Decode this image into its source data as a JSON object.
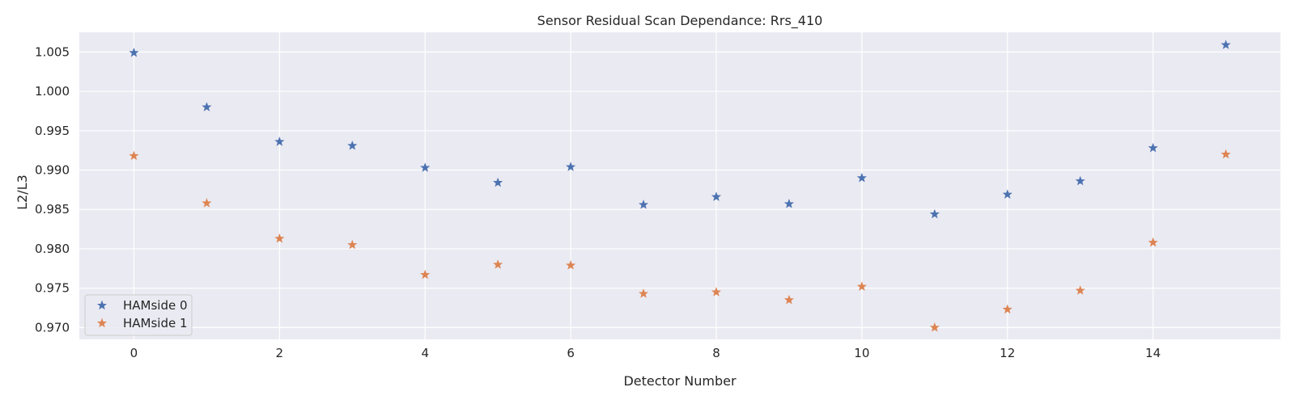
{
  "chart_data": {
    "type": "scatter",
    "title": "Sensor Residual Scan Dependance: Rrs_410",
    "xlabel": "Detector Number",
    "ylabel": "L2/L3",
    "xlim": [
      -0.75,
      15.75
    ],
    "ylim": [
      0.9685,
      1.0075
    ],
    "xticks": [
      0,
      2,
      4,
      6,
      8,
      10,
      12,
      14
    ],
    "yticks": [
      0.97,
      0.975,
      0.98,
      0.985,
      0.99,
      0.995,
      1.0,
      1.005
    ],
    "ytick_labels": [
      "0.970",
      "0.975",
      "0.980",
      "0.985",
      "0.990",
      "0.995",
      "1.000",
      "1.005"
    ],
    "grid": true,
    "marker": "star",
    "legend_position": "lower-left",
    "series": [
      {
        "name": "HAMside 0",
        "color": "#4c72b0",
        "x": [
          0,
          1,
          2,
          3,
          4,
          5,
          6,
          7,
          8,
          9,
          10,
          11,
          12,
          13,
          14,
          15
        ],
        "y": [
          1.0049,
          0.998,
          0.9936,
          0.9931,
          0.9903,
          0.9884,
          0.9904,
          0.9856,
          0.9866,
          0.9857,
          0.989,
          0.9844,
          0.9869,
          0.9886,
          0.9928,
          1.0059
        ]
      },
      {
        "name": "HAMside 1",
        "color": "#dd8452",
        "x": [
          0,
          1,
          2,
          3,
          4,
          5,
          6,
          7,
          8,
          9,
          10,
          11,
          12,
          13,
          14,
          15
        ],
        "y": [
          0.9918,
          0.9858,
          0.9813,
          0.9805,
          0.9767,
          0.978,
          0.9779,
          0.9743,
          0.9745,
          0.9735,
          0.9752,
          0.97,
          0.9723,
          0.9747,
          0.9808,
          0.992
        ]
      }
    ]
  }
}
